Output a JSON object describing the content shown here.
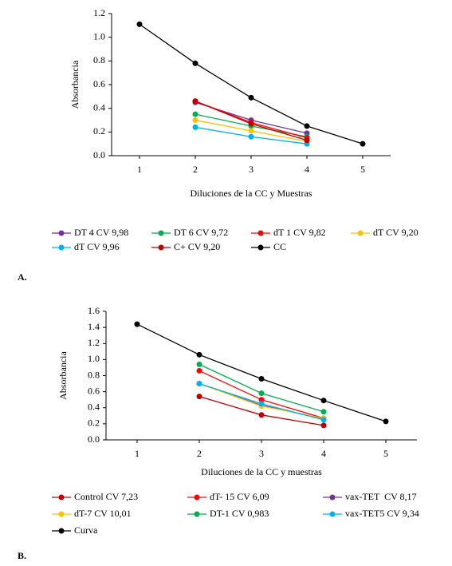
{
  "chart_data": [
    {
      "type": "line",
      "panel_label": "A.",
      "x_label": "Diluciones  de la CC y Muestras",
      "y_label": "Absorbancia",
      "x": [
        1,
        2,
        3,
        4,
        5
      ],
      "xlim": [
        0.5,
        5.5
      ],
      "xticks": [
        1,
        2,
        3,
        4,
        5
      ],
      "ylim": [
        0,
        1.2
      ],
      "yticks": [
        {
          "value": 0,
          "label": "0.0"
        },
        0.2,
        0.4,
        0.6,
        0.8,
        {
          "value": 1,
          "label": "1.0"
        },
        1.2
      ],
      "grid": false,
      "series": [
        {
          "name": "DT 4 CV 9,98",
          "color": "#7030a0",
          "values": [
            null,
            0.45,
            0.3,
            0.19,
            null
          ]
        },
        {
          "name": "DT 6 CV 9,72",
          "color": "#00b050",
          "values": [
            null,
            0.35,
            0.25,
            0.16,
            null
          ]
        },
        {
          "name": "dT 1 CV 9,82",
          "color": "#ff0000",
          "values": [
            null,
            0.46,
            0.28,
            0.15,
            null
          ]
        },
        {
          "name": "dT CV 9,20",
          "color": "#ffc000",
          "values": [
            null,
            0.3,
            0.21,
            0.12,
            null
          ]
        },
        {
          "name": "dT CV 9,96",
          "color": "#00b0f0",
          "values": [
            null,
            0.24,
            0.16,
            0.1,
            null
          ]
        },
        {
          "name": "C+ CV 9,20",
          "color": "#c00000",
          "values": [
            null,
            0.46,
            0.27,
            0.13,
            null
          ]
        },
        {
          "name": "CC",
          "color": "#000000",
          "values": [
            1.11,
            0.78,
            0.49,
            0.25,
            0.1
          ]
        }
      ]
    },
    {
      "type": "line",
      "panel_label": "B.",
      "x_label": "Diluciones de la CC y muestras",
      "y_label": "Absorbancia",
      "x": [
        1,
        2,
        3,
        4,
        5
      ],
      "xlim": [
        0.5,
        5.5
      ],
      "xticks": [
        1,
        2,
        3,
        4,
        5
      ],
      "ylim": [
        0,
        1.6
      ],
      "yticks": [
        {
          "value": 0,
          "label": "0.0"
        },
        0.2,
        0.4,
        0.6,
        0.8,
        {
          "value": 1,
          "label": "1.0"
        },
        1.2,
        1.4,
        1.6
      ],
      "grid": false,
      "series": [
        {
          "name": "Control CV 7,23",
          "color": "#c00000",
          "values": [
            null,
            0.54,
            0.31,
            0.18,
            null
          ]
        },
        {
          "name": "dT- 15 CV 6,09",
          "color": "#ff0000",
          "values": [
            null,
            0.86,
            0.5,
            0.27,
            null
          ]
        },
        {
          "name": "vax-TET  CV 8,17",
          "color": "#7030a0",
          "values": [
            null,
            0.7,
            0.43,
            0.26,
            null
          ]
        },
        {
          "name": "dT-7 CV 10,01",
          "color": "#ffc000",
          "values": [
            null,
            0.7,
            0.42,
            0.27,
            null
          ]
        },
        {
          "name": "DT-1 CV 0,983",
          "color": "#00b050",
          "values": [
            null,
            0.94,
            0.58,
            0.35,
            null
          ]
        },
        {
          "name": "vax-TET5 CV 9,34",
          "color": "#00b0f0",
          "values": [
            null,
            0.7,
            0.45,
            0.25,
            null
          ]
        },
        {
          "name": "Curva",
          "color": "#000000",
          "values": [
            1.44,
            1.06,
            0.76,
            0.49,
            0.23
          ]
        }
      ]
    }
  ]
}
